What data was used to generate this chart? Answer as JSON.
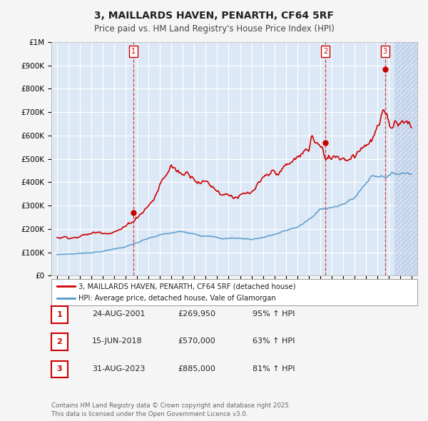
{
  "title": "3, MAILLARDS HAVEN, PENARTH, CF64 5RF",
  "subtitle": "Price paid vs. HM Land Registry's House Price Index (HPI)",
  "hpi_label": "HPI: Average price, detached house, Vale of Glamorgan",
  "price_label": "3, MAILLARDS HAVEN, PENARTH, CF64 5RF (detached house)",
  "price_color": "#cc0000",
  "hpi_color": "#5599cc",
  "background_color": "#f5f5f5",
  "plot_bg": "#dce8f5",
  "grid_color": "#ffffff",
  "vline_dates": [
    2001.648,
    2018.456,
    2023.664
  ],
  "vline_labels": [
    "1",
    "2",
    "3"
  ],
  "sale_prices": [
    269950,
    570000,
    885000
  ],
  "table_rows": [
    {
      "num": "1",
      "date": "24-AUG-2001",
      "price": "£269,950",
      "pct": "95% ↑ HPI"
    },
    {
      "num": "2",
      "date": "15-JUN-2018",
      "price": "£570,000",
      "pct": "63% ↑ HPI"
    },
    {
      "num": "3",
      "date": "31-AUG-2023",
      "price": "£885,000",
      "pct": "81% ↑ HPI"
    }
  ],
  "footer": "Contains HM Land Registry data © Crown copyright and database right 2025.\nThis data is licensed under the Open Government Licence v3.0.",
  "ylim": [
    0,
    1000000
  ],
  "xlim": [
    1994.5,
    2026.5
  ],
  "yticks": [
    0,
    100000,
    200000,
    300000,
    400000,
    500000,
    600000,
    700000,
    800000,
    900000,
    1000000
  ],
  "ytick_labels": [
    "£0",
    "£100K",
    "£200K",
    "£300K",
    "£400K",
    "£500K",
    "£600K",
    "£700K",
    "£800K",
    "£900K",
    "£1M"
  ],
  "xticks": [
    1995,
    1996,
    1997,
    1998,
    1999,
    2000,
    2001,
    2002,
    2003,
    2004,
    2005,
    2006,
    2007,
    2008,
    2009,
    2010,
    2011,
    2012,
    2013,
    2014,
    2015,
    2016,
    2017,
    2018,
    2019,
    2020,
    2021,
    2022,
    2023,
    2024,
    2025,
    2026
  ]
}
